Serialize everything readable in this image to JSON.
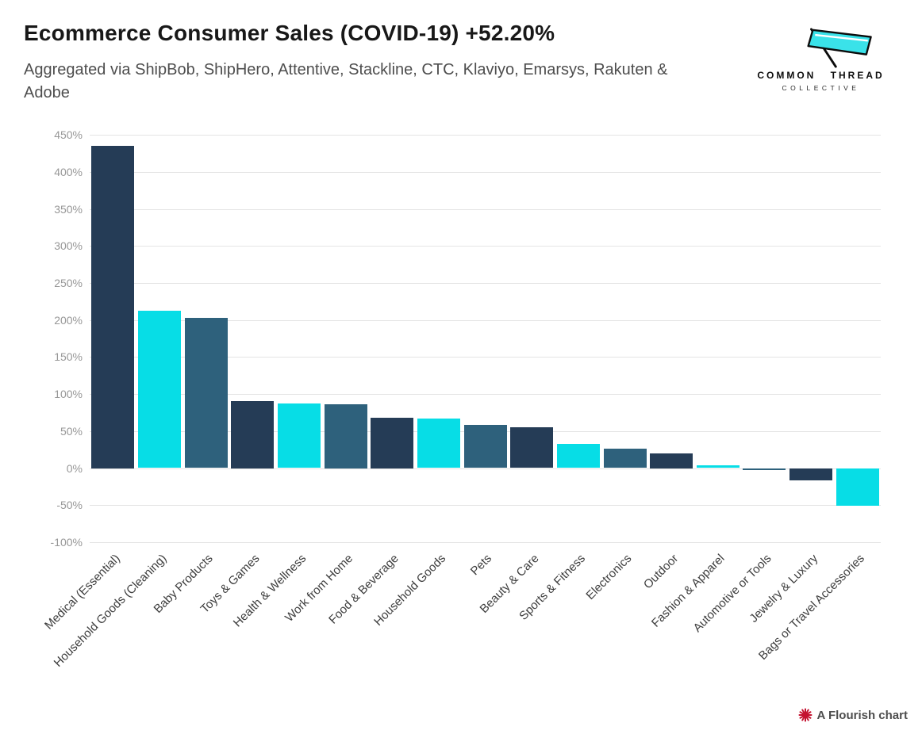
{
  "header": {
    "title": "Ecommerce Consumer Sales (COVID-19) +52.20%",
    "subtitle": "Aggregated via ShipBob, ShipHero, Attentive, Stackline, CTC, Klaviyo, Emarsys, Rakuten & Adobe"
  },
  "logo": {
    "line1": "COMMON THREAD",
    "line2": "COLLECTIVE",
    "flag_color": "#3ae2e9"
  },
  "footer": {
    "credit": "A Flourish chart",
    "icon_color": "#c41230"
  },
  "chart_data": {
    "type": "bar",
    "title": "Ecommerce Consumer Sales (COVID-19) +52.20%",
    "unit": "%",
    "categories": [
      "Medical (Essential)",
      "Household Goods (Cleaning)",
      "Baby Products",
      "Toys & Games",
      "Health & Wellness",
      "Work from Home",
      "Food & Beverage",
      "Household Goods",
      "Pets",
      "Beauty & Care",
      "Sports & Fitness",
      "Electronics",
      "Outdoor",
      "Fashion & Apparel",
      "Automotive or Tools",
      "Jewelry & Luxury",
      "Bags or Travel Accessories"
    ],
    "values": [
      435,
      212,
      203,
      91,
      87,
      86,
      68,
      67,
      58,
      55,
      33,
      26,
      20,
      4,
      -3,
      -17,
      -51
    ],
    "ylim": [
      -100,
      450
    ],
    "ytick_step": 50,
    "yticks": [
      {
        "value": 450,
        "label": "450%"
      },
      {
        "value": 400,
        "label": "400%"
      },
      {
        "value": 350,
        "label": "350%"
      },
      {
        "value": 300,
        "label": "300%"
      },
      {
        "value": 250,
        "label": "250%"
      },
      {
        "value": 200,
        "label": "200%"
      },
      {
        "value": 150,
        "label": "150%"
      },
      {
        "value": 100,
        "label": "100%"
      },
      {
        "value": 50,
        "label": "50%"
      },
      {
        "value": 0,
        "label": "0%"
      },
      {
        "value": -50,
        "label": "-50%"
      },
      {
        "value": -100,
        "label": "-100%"
      }
    ],
    "palette": [
      "#253c56",
      "#07dde6",
      "#2e617c"
    ],
    "bar_color_rule": "palette repeats in sequence across bars",
    "grid": true,
    "grid_color": "#e4e4e4",
    "legend": "none",
    "xlabel": "",
    "ylabel": ""
  }
}
